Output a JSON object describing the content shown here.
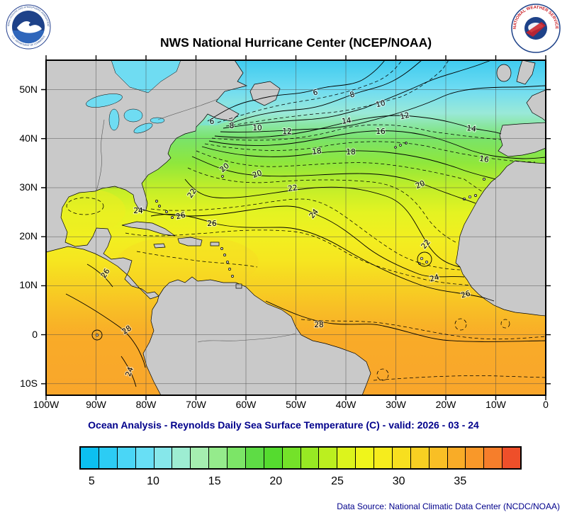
{
  "header": {
    "title": "NWS National Hurricane Center (NCEP/NOAA)"
  },
  "logos": {
    "noaa": {
      "ring_top": "NATIONAL OCEANIC AND ATMOSPHERIC ADMINISTRATION",
      "ring_bottom": "U.S. DEPARTMENT OF COMMERCE"
    },
    "nws": {
      "ring_text": "NATIONAL WEATHER SERVICE"
    }
  },
  "map": {
    "lat_labels": [
      "50N",
      "40N",
      "30N",
      "20N",
      "10N",
      "0",
      "10S"
    ],
    "lon_labels": [
      "100W",
      "90W",
      "80W",
      "70W",
      "60W",
      "50W",
      "40W",
      "30W",
      "20W",
      "10W",
      "0"
    ],
    "contour_label_texts": [
      "6",
      "8",
      "10",
      "12",
      "6",
      "8",
      "10",
      "12",
      "14",
      "16",
      "14",
      "16",
      "18",
      "18",
      "20",
      "20",
      "20",
      "22",
      "22",
      "22",
      "24",
      "24",
      "24",
      "26",
      "26",
      "26",
      "26",
      "28",
      "28",
      "24"
    ]
  },
  "caption": {
    "subtitle": "Ocean Analysis - Reynolds Daily Sea Surface Temperature (C) - valid: 2026 - 03 - 24",
    "data_source": "Data Source: National Climatic Data Center (NCDC/NOAA)"
  },
  "colorbar": {
    "tick_labels": [
      "5",
      "10",
      "15",
      "20",
      "25",
      "30",
      "35"
    ],
    "colors": [
      "#0CC0F0",
      "#2CCCF4",
      "#4AD6F6",
      "#68DFF5",
      "#86E7EA",
      "#9DEDD2",
      "#A5EEB0",
      "#95EB8C",
      "#7CE567",
      "#5EDC45",
      "#55DB2F",
      "#74E229",
      "#97E923",
      "#BBEF1F",
      "#DCF41C",
      "#EFF51B",
      "#F6EC1D",
      "#F7DF1F",
      "#F8D022",
      "#F9BF25",
      "#F9AC27",
      "#F99829",
      "#F67E2B",
      "#EE4F2A"
    ]
  },
  "chart_data": {
    "type": "heatmap",
    "title": "Reynolds Daily Sea Surface Temperature (C)",
    "valid_date": "2026 - 03 - 24",
    "lon_range": [
      "100W",
      "0"
    ],
    "lat_range": [
      "10S",
      "55N"
    ],
    "isotherms_C": [
      6,
      8,
      10,
      12,
      14,
      16,
      18,
      20,
      22,
      24,
      26,
      28
    ],
    "colorbar_ticks_C": [
      5,
      10,
      15,
      20,
      25,
      30,
      35
    ],
    "approx_zonal_mean_sst_C": {
      "50N": 8,
      "40N": 15,
      "30N": 21,
      "20N": 25,
      "10N": 27,
      "0": 28,
      "10S": 27
    }
  }
}
